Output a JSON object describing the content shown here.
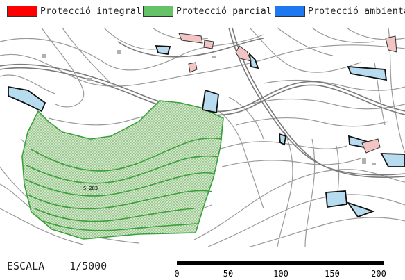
{
  "legend": {
    "items": [
      {
        "label": "Protecció integral",
        "color": "#ff0000"
      },
      {
        "label": "Protecció parcial",
        "color": "#66c266"
      },
      {
        "label": "Protecció ambiental",
        "color": "#1e78f0"
      }
    ]
  },
  "map": {
    "zone_label": "S-283",
    "contour_color": "#9a9a9a",
    "road_color": "#7a7a7a",
    "parcial_fill": "#cfe7c4",
    "parcial_stroke": "#3aa03a",
    "ambiental_fill": "#b7dcef",
    "building_fill": "#f2c4c4"
  },
  "scale": {
    "label": "ESCALA",
    "ratio": "1/5000",
    "ticks": [
      "0",
      "50",
      "100",
      "150",
      "200"
    ]
  }
}
